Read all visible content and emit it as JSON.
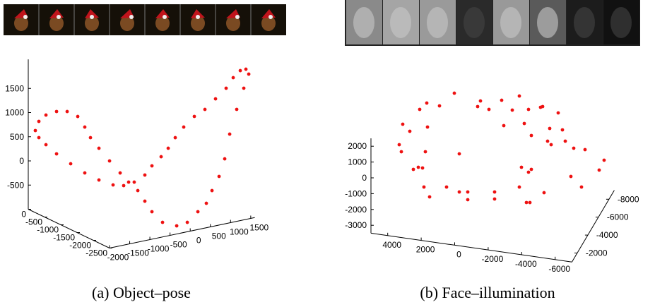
{
  "chart_data": [
    {
      "type": "scatter3d",
      "caption": "(a) Object–pose",
      "color": "#ee1111",
      "x": [
        -1825,
        -1769,
        -1658,
        -1492,
        -1326,
        -1160,
        -1050,
        -961,
        -828,
        -662,
        -496,
        -363,
        -219,
        -109,
        2,
        168,
        390,
        556,
        722,
        854,
        943,
        1054,
        1142,
        1220,
        1330,
        1441,
        1519,
        1474,
        1386,
        1275,
        1164,
        998,
        832,
        666,
        500,
        367,
        257,
        146,
        2,
        -109,
        -276,
        -441,
        -607,
        -828,
        -1050,
        -1271,
        -1492,
        -1658,
        -1769
      ],
      "y": [
        0,
        -40,
        -120,
        -240,
        -360,
        -480,
        -560,
        -624,
        -720,
        -840,
        -960,
        -1056,
        -1160,
        -1240,
        -1320,
        -1440,
        -1600,
        -1720,
        -1840,
        -1936,
        -2000,
        -2080,
        -2144,
        -2200,
        -2280,
        -2360,
        -2416,
        -2384,
        -2320,
        -2240,
        -2160,
        -2040,
        -1920,
        -1800,
        -1680,
        -1584,
        -1504,
        -1424,
        -1320,
        -1240,
        -1120,
        -1000,
        -880,
        -720,
        -560,
        -400,
        -240,
        -120,
        -40
      ],
      "z": [
        597,
        790,
        927,
        1010,
        1019,
        926,
        714,
        500,
        288,
        35,
        -204,
        -386,
        -553,
        -766,
        -978,
        -1188,
        -1248,
        -1166,
        -937,
        -755,
        -487,
        -188,
        181,
        697,
        1215,
        1659,
        1955,
        2054,
        2020,
        1868,
        1643,
        1414,
        1186,
        1031,
        802,
        575,
        350,
        168,
        -29,
        -225,
        -381,
        -463,
        -458,
        -369,
        -235,
        -58,
        134,
        314,
        454
      ],
      "xlim": [
        -2000,
        1600
      ],
      "ylim": [
        -2500,
        0
      ],
      "zlim": [
        -1000,
        2100
      ],
      "xticks": [
        -2000,
        -1500,
        -1000,
        -500,
        0,
        500,
        1000,
        1500
      ],
      "yticks": [
        0,
        -500,
        -1000,
        -1500,
        -2000,
        -2500
      ],
      "zticks": [
        -500,
        0,
        500,
        1000,
        1500
      ]
    },
    {
      "type": "scatter3d",
      "caption": "(b) Face–illumination",
      "color": "#ee1111",
      "x": [
        1287,
        -274,
        -1540,
        -2595,
        3354,
        2932,
        2173,
        -105,
        -781,
        -2173,
        -3143,
        -2911,
        -3038,
        -3966,
        4367,
        3945,
        2890,
        -1667,
        -2890,
        -3312,
        -3460,
        -4219,
        -3333,
        -3544,
        -4388,
        4578,
        4451,
        3017,
        991,
        -4894,
        -5569,
        -6708,
        3734,
        3438,
        3185,
        -2721,
        -3143,
        -3312,
        -4725,
        -6413,
        3101,
        1751,
        991,
        485,
        -1118,
        -2595,
        -4071,
        -5358,
        2763,
        485,
        -1118,
        -3017,
        -3227
      ],
      "y": [
        -5000,
        -5000,
        -5000,
        -5000,
        -5000,
        -5000,
        -5000,
        -5000,
        -5000,
        -5000,
        -5000,
        -8000,
        -8000,
        -8000,
        -5000,
        -5000,
        -5000,
        -5000,
        -5000,
        -5000,
        -8000,
        -8000,
        -8000,
        -8000,
        -8000,
        -5000,
        -5000,
        -5000,
        -5000,
        -8000,
        -8000,
        -8000,
        -5000,
        -5000,
        -5000,
        -5000,
        -5000,
        -5000,
        -8000,
        -8000,
        -5000,
        -5000,
        -5000,
        -5000,
        -5000,
        -5000,
        -5000,
        -8000,
        -5000,
        -5000,
        -5000,
        -5000,
        -5000
      ],
      "z": [
        3652,
        3398,
        3635,
        4063,
        2312,
        2778,
        2715,
        3016,
        2940,
        3107,
        3298,
        1696,
        1760,
        1500,
        1221,
        839,
        1267,
        2048,
        2367,
        1672,
        440,
        466,
        -383,
        -574,
        -222,
        -106,
        -533,
        -315,
        -141,
        -592,
        -579,
        -1075,
        -1540,
        -1361,
        -1367,
        -426,
        -674,
        -470,
        -2403,
        -1745,
        -2560,
        -2355,
        -2552,
        -2475,
        -2232,
        -1696,
        -1829,
        -2977,
        -3133,
        -2966,
        -2678,
        -2613,
        -2582
      ],
      "xlim": [
        -7000,
        5000
      ],
      "ylim": [
        -9000,
        -1000
      ],
      "zlim": [
        -3500,
        2500
      ],
      "xticks": [
        4000,
        2000,
        0,
        -2000,
        -4000,
        -6000
      ],
      "yticks": [
        -8000,
        -6000,
        -4000,
        -2000
      ],
      "zticks": [
        2000,
        1000,
        0,
        -1000,
        -2000,
        -3000
      ]
    }
  ]
}
